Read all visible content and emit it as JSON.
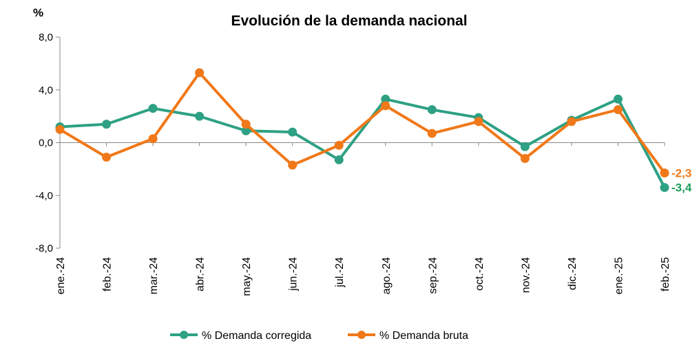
{
  "chart_data": {
    "type": "line",
    "title": "Evolución de la demanda nacional",
    "unit_label": "%",
    "categories": [
      "ene.-24",
      "feb.-24",
      "mar.-24",
      "abr.-24",
      "may.-24",
      "jun.-24",
      "jul.-24",
      "ago.-24",
      "sep.-24",
      "oct.-24",
      "nov.-24",
      "dic.-24",
      "ene.-25",
      "feb.-25"
    ],
    "ylim": [
      -8,
      8
    ],
    "yticks": [
      "8,0",
      "4,0",
      "0,0",
      "-4,0",
      "-8,0"
    ],
    "series": [
      {
        "name": "% Demanda corregida",
        "color": "#2ea084",
        "values": [
          1.2,
          1.4,
          2.6,
          2.0,
          0.9,
          0.8,
          -1.3,
          3.3,
          2.5,
          1.9,
          -0.3,
          1.7,
          3.3,
          -3.4
        ],
        "end_label": "-3,4",
        "end_label_color": "#19a05a"
      },
      {
        "name": "% Demanda bruta",
        "color": "#f07818",
        "values": [
          1.0,
          -1.1,
          0.3,
          5.3,
          1.4,
          -1.7,
          -0.2,
          2.8,
          0.7,
          1.6,
          -1.2,
          1.6,
          2.5,
          -2.3
        ],
        "end_label": "-2,3",
        "end_label_color": "#f07818"
      }
    ],
    "grid": false,
    "legend_position": "bottom"
  }
}
